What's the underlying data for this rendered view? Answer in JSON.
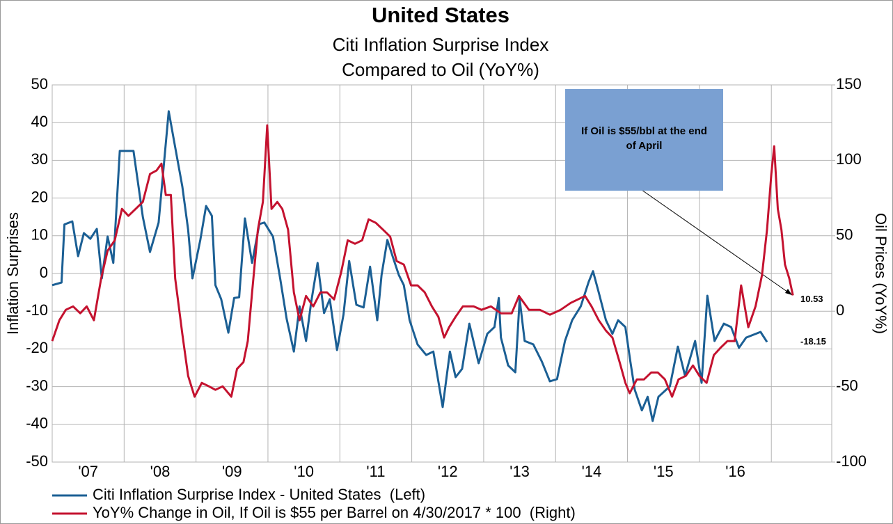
{
  "chart_data": {
    "type": "line",
    "title": "United States",
    "subtitle": [
      "Citi Inflation Surprise Index",
      "Compared to Oil (YoY%)"
    ],
    "ylabel": "Inflation Surprises",
    "y2label": "Oil Prices (YoY%)",
    "annotation": "If Oil is $55/bbl at the end of April",
    "xlim": [
      2007,
      2017.84
    ],
    "xticks": [
      {
        "value": 2007,
        "label": "'07"
      },
      {
        "value": 2008,
        "label": "'08"
      },
      {
        "value": 2009,
        "label": "'09"
      },
      {
        "value": 2010,
        "label": "'10"
      },
      {
        "value": 2011,
        "label": "'11"
      },
      {
        "value": 2012,
        "label": "'12"
      },
      {
        "value": 2013,
        "label": "'13"
      },
      {
        "value": 2014,
        "label": "'14"
      },
      {
        "value": 2015,
        "label": "'15"
      },
      {
        "value": 2016,
        "label": "'16"
      }
    ],
    "ylim": [
      -50,
      50
    ],
    "yticks": [
      -50,
      -40,
      -30,
      -20,
      -10,
      0,
      10,
      20,
      30,
      40,
      50
    ],
    "y2lim": [
      -100,
      150
    ],
    "y2ticks": [
      -100,
      -50,
      0,
      50,
      100,
      150
    ],
    "grid": true,
    "series": [
      {
        "name": "Citi Inflation Surprise Index - United States  (Left)",
        "color": "#1b5f94",
        "axis": "y",
        "x": [
          2007.0,
          2007.13,
          2007.17,
          2007.28,
          2007.36,
          2007.44,
          2007.53,
          2007.62,
          2007.69,
          2007.77,
          2007.85,
          2007.94,
          2008.13,
          2008.26,
          2008.36,
          2008.48,
          2008.62,
          2008.69,
          2008.81,
          2008.89,
          2008.95,
          2009.06,
          2009.14,
          2009.22,
          2009.27,
          2009.35,
          2009.45,
          2009.53,
          2009.6,
          2009.68,
          2009.78,
          2009.88,
          2009.95,
          2010.07,
          2010.17,
          2010.26,
          2010.36,
          2010.44,
          2010.53,
          2010.6,
          2010.69,
          2010.78,
          2010.86,
          2010.96,
          2011.05,
          2011.13,
          2011.23,
          2011.33,
          2011.42,
          2011.52,
          2011.58,
          2011.66,
          2011.74,
          2011.82,
          2011.89,
          2011.97,
          2012.08,
          2012.2,
          2012.3,
          2012.43,
          2012.53,
          2012.61,
          2012.7,
          2012.8,
          2012.93,
          2013.05,
          2013.15,
          2013.21,
          2013.24,
          2013.34,
          2013.44,
          2013.5,
          2013.57,
          2013.69,
          2013.81,
          2013.92,
          2014.02,
          2014.13,
          2014.23,
          2014.35,
          2014.46,
          2014.52,
          2014.6,
          2014.7,
          2014.79,
          2014.87,
          2014.97,
          2015.04,
          2015.1,
          2015.2,
          2015.28,
          2015.35,
          2015.43,
          2015.59,
          2015.7,
          2015.8,
          2015.94,
          2016.03,
          2016.11,
          2016.21,
          2016.34,
          2016.44,
          2016.55,
          2016.65,
          2016.85,
          2016.94
        ],
        "values": [
          -3.1,
          -2.4,
          13,
          13.8,
          4.6,
          10.7,
          9.2,
          11.8,
          -1.3,
          9.8,
          2.8,
          32.5,
          32.5,
          15,
          5.7,
          13.5,
          43,
          35.6,
          23,
          11.6,
          -1.3,
          8.9,
          17.9,
          15.3,
          -3.1,
          -6.8,
          -15.7,
          -6.5,
          -6.3,
          14.6,
          2.8,
          13.1,
          13.5,
          9.8,
          -1.3,
          -12,
          -20.7,
          -8.7,
          -17.9,
          -7.7,
          2.8,
          -10.5,
          -6.8,
          -20.3,
          -10.9,
          3.3,
          -8.3,
          -9,
          1.8,
          -12.4,
          -0.4,
          8.9,
          4.2,
          -0.4,
          -3.1,
          -12.4,
          -18.8,
          -21.6,
          -20.7,
          -35.4,
          -20.7,
          -27.5,
          -25.3,
          -13.3,
          -23.8,
          -16,
          -14.2,
          -6.5,
          -17,
          -24.4,
          -26.2,
          -6.8,
          -17.9,
          -18.8,
          -23.4,
          -28.6,
          -28,
          -17.9,
          -12.4,
          -8.7,
          -2.2,
          0.6,
          -5,
          -12.4,
          -16,
          -12.4,
          -14.2,
          -23.4,
          -30.8,
          -36.3,
          -32.7,
          -39.1,
          -32.7,
          -29.9,
          -19.4,
          -27.1,
          -17.9,
          -29,
          -5.9,
          -17.9,
          -13.3,
          -14.2,
          -19.7,
          -17,
          -15.5,
          -18.15
        ]
      },
      {
        "name": "YoY% Change in Oil, If Oil is $55 per Barrel on 4/30/2017 * 100  (Right)",
        "color": "#c4122f",
        "axis": "y2",
        "x": [
          2007.0,
          2007.1,
          2007.19,
          2007.29,
          2007.39,
          2007.48,
          2007.58,
          2007.68,
          2007.77,
          2007.87,
          2007.97,
          2008.06,
          2008.16,
          2008.26,
          2008.36,
          2008.45,
          2008.52,
          2008.58,
          2008.65,
          2008.71,
          2008.81,
          2008.89,
          2008.98,
          2009.08,
          2009.18,
          2009.27,
          2009.37,
          2009.49,
          2009.57,
          2009.66,
          2009.72,
          2009.78,
          2009.86,
          2009.93,
          2009.99,
          2010.05,
          2010.13,
          2010.2,
          2010.28,
          2010.36,
          2010.44,
          2010.53,
          2010.63,
          2010.73,
          2010.82,
          2010.92,
          2011.02,
          2011.11,
          2011.21,
          2011.31,
          2011.4,
          2011.5,
          2011.6,
          2011.7,
          2011.79,
          2011.89,
          2011.99,
          2012.08,
          2012.18,
          2012.28,
          2012.37,
          2012.45,
          2012.52,
          2012.61,
          2012.71,
          2012.86,
          2012.97,
          2013.1,
          2013.24,
          2013.39,
          2013.49,
          2013.63,
          2013.78,
          2013.92,
          2014.07,
          2014.21,
          2014.41,
          2014.5,
          2014.6,
          2014.7,
          2014.79,
          2014.89,
          2014.97,
          2015.03,
          2015.13,
          2015.23,
          2015.33,
          2015.42,
          2015.52,
          2015.62,
          2015.71,
          2015.81,
          2015.91,
          2016.0,
          2016.1,
          2016.2,
          2016.29,
          2016.39,
          2016.49,
          2016.58,
          2016.68,
          2016.78,
          2016.87,
          2016.94,
          2017.0,
          2017.04,
          2017.09,
          2017.14,
          2017.19,
          2017.25,
          2017.3
        ],
        "values": [
          -19.8,
          -6,
          0.9,
          3.2,
          -1.4,
          3.2,
          -6,
          21.7,
          40.1,
          47,
          67.8,
          63.2,
          67.8,
          72.4,
          90.9,
          93.2,
          97.8,
          77,
          77,
          21.7,
          -15.2,
          -42.9,
          -56.7,
          -47.5,
          -49.8,
          -52.1,
          -49.8,
          -56.7,
          -38.3,
          -33.7,
          -19.8,
          12.5,
          54,
          72.4,
          123.2,
          67.8,
          72.4,
          67.8,
          54,
          12.5,
          -6,
          10.1,
          3.2,
          12.5,
          12.5,
          7.8,
          26.3,
          47,
          44.7,
          47,
          60.9,
          58.6,
          54,
          49.4,
          33.2,
          30.9,
          17.1,
          17.1,
          12.5,
          3.2,
          -3.7,
          -17.5,
          -10.6,
          -3.7,
          3.2,
          3.2,
          0.9,
          3.2,
          -1.4,
          -1.4,
          10.1,
          0.9,
          0.9,
          -2.3,
          0.9,
          5.5,
          10.1,
          3.2,
          -6,
          -12.9,
          -17.5,
          -33.7,
          -47.5,
          -54.4,
          -45.2,
          -45.2,
          -40.6,
          -40.6,
          -45.2,
          -56.7,
          -45.2,
          -42.9,
          -36,
          -42.9,
          -47.5,
          -29.1,
          -24.4,
          -19.8,
          -19.8,
          17.1,
          -10.6,
          3.2,
          24,
          54,
          90.9,
          109.3,
          67.8,
          54,
          30.9,
          21.7,
          10.53
        ]
      }
    ]
  }
}
